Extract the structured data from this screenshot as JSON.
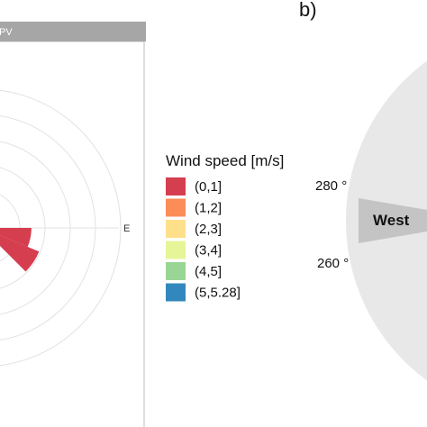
{
  "chart_data": [
    {
      "type": "windrose",
      "strip_title": "PV",
      "compass_labels": [
        "E"
      ],
      "legend": {
        "title": "Wind speed [m/s]",
        "bins": [
          {
            "label": "(0,1]",
            "color": "#d53e4f"
          },
          {
            "label": "(1,2]",
            "color": "#fc8d59"
          },
          {
            "label": "(2,3]",
            "color": "#fee08b"
          },
          {
            "label": "(3,4]",
            "color": "#e6f598"
          },
          {
            "label": "(4,5]",
            "color": "#99d594"
          },
          {
            "label": "(5,5.28]",
            "color": "#3288bd"
          }
        ]
      },
      "visible_sectors": [
        {
          "sector": "WSW",
          "bin": "(0,1]",
          "relative_extent": 0.8
        },
        {
          "sector": "SW",
          "bin": "(0,1]",
          "relative_extent": 1.0
        }
      ],
      "grid": true,
      "ring_count": 5,
      "strip_color": "#a6a6a6"
    },
    {
      "type": "sector_diagram",
      "panel_label": "b)",
      "sector_name": "West",
      "angle_labels": [
        "280 °",
        "260 °"
      ],
      "sector_range_deg": [
        260,
        280
      ],
      "disc_color": "#e8e8e8",
      "sector_color": "#c4c4c4"
    }
  ]
}
